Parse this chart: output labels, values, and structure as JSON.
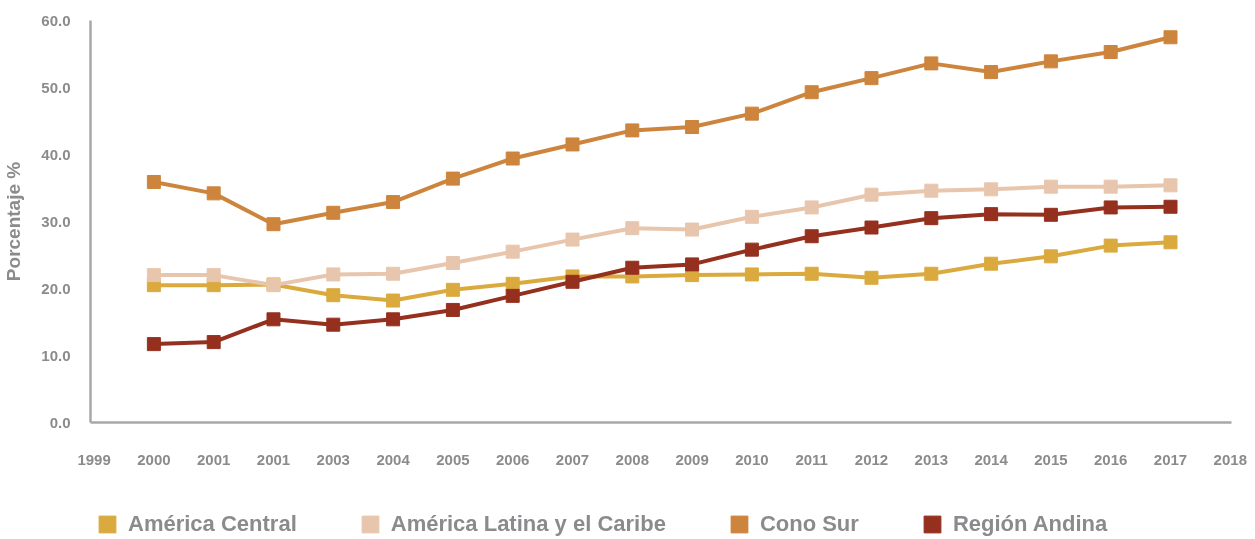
{
  "chart_data": {
    "type": "line",
    "ylabel": "Porcentaje %",
    "categories": [
      "1999",
      "2000",
      "2001",
      "2001",
      "2003",
      "2004",
      "2005",
      "2006",
      "2007",
      "2008",
      "2009",
      "2010",
      "2011",
      "2012",
      "2013",
      "2014",
      "2015",
      "2016",
      "2017",
      "2018"
    ],
    "series": [
      {
        "name": "América Central",
        "color": "#dbaa3f",
        "values": [
          null,
          20.5,
          20.5,
          20.6,
          19.0,
          18.2,
          19.8,
          20.7,
          21.8,
          21.8,
          22.0,
          22.1,
          22.2,
          21.6,
          22.2,
          23.7,
          24.8,
          26.4,
          26.9,
          null
        ]
      },
      {
        "name": "América Latina y el Caribe",
        "color": "#e8c6ad",
        "values": [
          null,
          22.0,
          22.0,
          20.5,
          22.1,
          22.2,
          23.8,
          25.5,
          27.3,
          29.0,
          28.8,
          30.7,
          32.1,
          34.0,
          34.6,
          34.8,
          35.2,
          35.2,
          35.4,
          null
        ]
      },
      {
        "name": "Cono Sur",
        "color": "#cd843c",
        "values": [
          null,
          35.9,
          34.2,
          29.6,
          31.3,
          32.9,
          36.4,
          39.4,
          41.5,
          43.6,
          44.1,
          46.1,
          49.3,
          51.4,
          53.6,
          52.3,
          53.9,
          55.3,
          57.5,
          null
        ]
      },
      {
        "name": "Región Andina",
        "color": "#95301f",
        "values": [
          null,
          11.7,
          12.0,
          15.4,
          14.6,
          15.4,
          16.8,
          18.9,
          21.0,
          23.1,
          23.6,
          25.8,
          27.8,
          29.1,
          30.5,
          31.1,
          31.0,
          32.1,
          32.2,
          null
        ]
      }
    ],
    "ylim": [
      0,
      60
    ],
    "yticks": [
      {
        "value": 0,
        "label": "0.0"
      },
      {
        "value": 10,
        "label": "10.0"
      },
      {
        "value": 20,
        "label": "20.0"
      },
      {
        "value": 30,
        "label": "30.0"
      },
      {
        "value": 40,
        "label": "40.0"
      },
      {
        "value": 50,
        "label": "50.0"
      },
      {
        "value": 60,
        "label": "60.0"
      }
    ],
    "grid": false,
    "legend": "bottom",
    "marker": "square",
    "line_style": "solid"
  }
}
